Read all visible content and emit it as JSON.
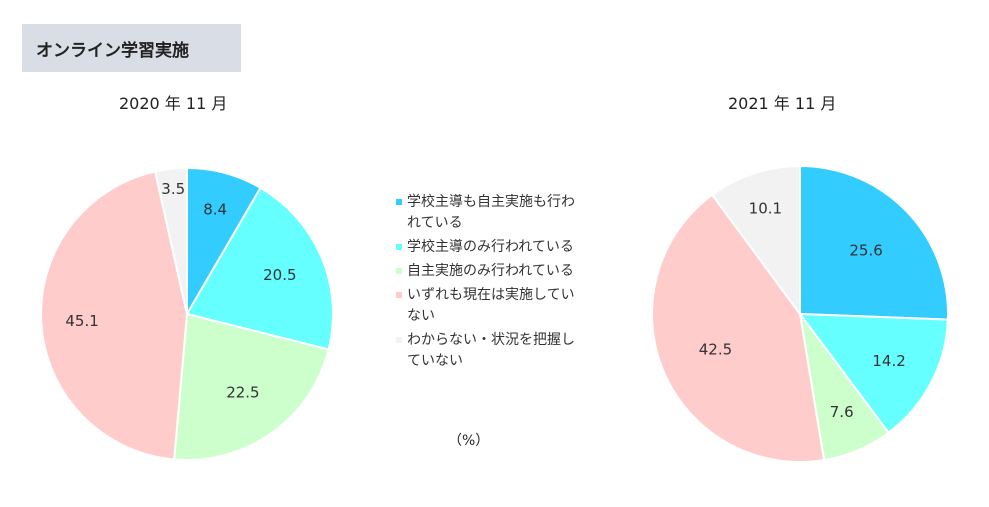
{
  "header": {
    "title": "オンライン学習実施"
  },
  "unit_label": "（%）",
  "legend": [
    {
      "label": "学校主導も自主実施も行われている",
      "color": "#33ccff"
    },
    {
      "label": "学校主導のみ行われている",
      "color": "#66ffff"
    },
    {
      "label": "自主実施のみ行われている",
      "color": "#ccffcc"
    },
    {
      "label": "いずれも現在は実施していない",
      "color": "#ffcccc"
    },
    {
      "label": "わからない・状況を把握していない",
      "color": "#f2f2f2"
    }
  ],
  "chart_data": [
    {
      "type": "pie",
      "title": "2020 年 11 月",
      "categories": [
        "学校主導も自主実施も行われている",
        "学校主導のみ行われている",
        "自主実施のみ行われている",
        "いずれも現在は実施していない",
        "わからない・状況を把握していない"
      ],
      "values": [
        8.4,
        20.5,
        22.5,
        45.1,
        3.5
      ],
      "labels": [
        "8.4",
        "20.5",
        "22.5",
        "45.1",
        "3.5"
      ],
      "colors": [
        "#33ccff",
        "#66ffff",
        "#ccffcc",
        "#ffcccc",
        "#f2f2f2"
      ],
      "start": "12 o'clock, clockwise"
    },
    {
      "type": "pie",
      "title": "2021 年 11 月",
      "categories": [
        "学校主導も自主実施も行われている",
        "学校主導のみ行われている",
        "自主実施のみ行われている",
        "いずれも現在は実施していない",
        "わからない・状況を把握していない"
      ],
      "values": [
        25.6,
        14.2,
        7.6,
        42.5,
        10.1
      ],
      "labels": [
        "25.6",
        "14.2",
        "7.6",
        "42.5",
        "10.1"
      ],
      "colors": [
        "#33ccff",
        "#66ffff",
        "#ccffcc",
        "#ffcccc",
        "#f2f2f2"
      ],
      "start": "12 o'clock, clockwise"
    }
  ]
}
